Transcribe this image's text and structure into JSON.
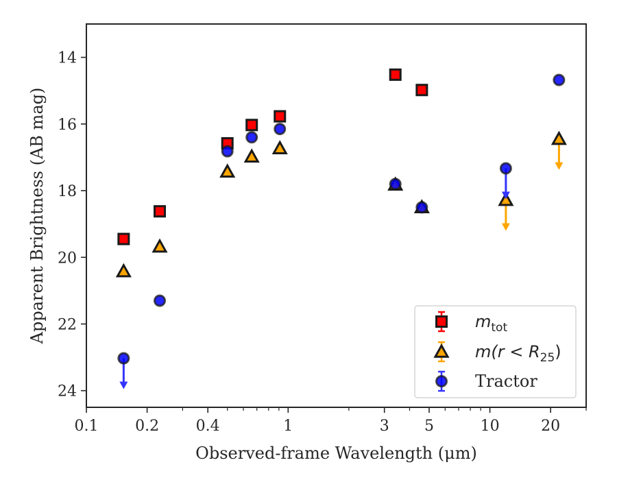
{
  "chart_data": {
    "type": "scatter",
    "xlabel": "Observed-frame Wavelength (μm)",
    "ylabel": "Apparent Brightness (AB mag)",
    "xscale": "log",
    "xlim": [
      0.1,
      30
    ],
    "ylim": [
      24.5,
      13
    ],
    "y_inverted": true,
    "x_ticks": [
      0.1,
      0.2,
      0.4,
      1,
      3,
      5,
      10,
      20
    ],
    "x_tick_labels": [
      "0.1",
      "0.2",
      "0.4",
      "1",
      "3",
      "5",
      "10",
      "20"
    ],
    "y_ticks": [
      14,
      16,
      18,
      20,
      22,
      24
    ],
    "y_tick_labels": [
      "14",
      "16",
      "18",
      "20",
      "22",
      "24"
    ],
    "legend_position": "lower right",
    "series": [
      {
        "name": "m_tot",
        "marker": "square",
        "color": "#ff0000",
        "points": [
          {
            "x": 0.153,
            "y": 19.45
          },
          {
            "x": 0.231,
            "y": 18.62
          },
          {
            "x": 0.5,
            "y": 16.58
          },
          {
            "x": 0.66,
            "y": 16.03
          },
          {
            "x": 0.91,
            "y": 15.77
          },
          {
            "x": 3.4,
            "y": 14.52
          },
          {
            "x": 4.6,
            "y": 14.98
          }
        ]
      },
      {
        "name": "m(r < R25)",
        "marker": "triangle",
        "color": "#ffa500",
        "points": [
          {
            "x": 0.153,
            "y": 20.42
          },
          {
            "x": 0.231,
            "y": 19.68
          },
          {
            "x": 0.5,
            "y": 17.43
          },
          {
            "x": 0.66,
            "y": 16.98
          },
          {
            "x": 0.91,
            "y": 16.73
          },
          {
            "x": 3.4,
            "y": 17.82
          },
          {
            "x": 4.6,
            "y": 18.5
          },
          {
            "x": 12.0,
            "y": 18.28,
            "upper_limit": true
          },
          {
            "x": 22.0,
            "y": 16.45,
            "upper_limit": true
          }
        ]
      },
      {
        "name": "Tractor",
        "marker": "circle",
        "color": "#0000ff",
        "points": [
          {
            "x": 0.153,
            "y": 23.03,
            "upper_limit": true
          },
          {
            "x": 0.231,
            "y": 21.3
          },
          {
            "x": 0.5,
            "y": 16.82
          },
          {
            "x": 0.66,
            "y": 16.4
          },
          {
            "x": 0.91,
            "y": 16.15
          },
          {
            "x": 3.4,
            "y": 17.8
          },
          {
            "x": 4.6,
            "y": 18.5
          },
          {
            "x": 12.0,
            "y": 17.33,
            "upper_limit": true
          },
          {
            "x": 22.0,
            "y": 14.68
          }
        ]
      }
    ],
    "legend": {
      "entries": [
        {
          "series": "m_tot",
          "base": "m",
          "sub": "tot",
          "text": "m_tot"
        },
        {
          "series": "m(r < R25)",
          "base": "m(r < R",
          "sub": "25",
          "tail": ")",
          "text": "m(r < R25)"
        },
        {
          "series": "Tractor",
          "text": "Tractor"
        }
      ]
    }
  }
}
